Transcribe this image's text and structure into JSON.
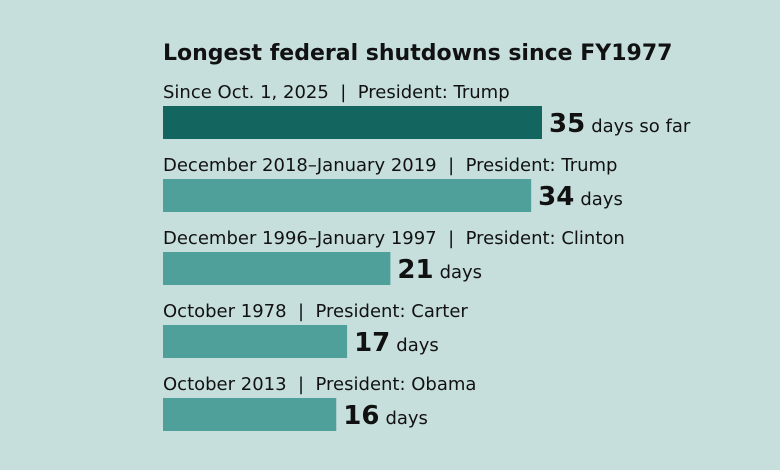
{
  "chart_data": {
    "type": "bar",
    "orientation": "horizontal",
    "title": "Longest federal shutdowns since FY1977",
    "xlabel": "",
    "ylabel": "",
    "xlim": [
      0,
      35
    ],
    "grid": false,
    "legend": "none",
    "categories": [
      "Since Oct. 1, 2025  |  President: Trump",
      "December 2018–January 2019  |  President: Trump",
      "December 1996–January 1997  |  President: Clinton",
      "October 1978  |  President: Carter",
      "October 2013  |  President: Obama"
    ],
    "values": [
      35,
      34,
      21,
      17,
      16
    ],
    "value_units": [
      "days so far",
      "days",
      "days",
      "days",
      "days"
    ],
    "colors": [
      "#136660",
      "#4f9f9b",
      "#4f9f9b",
      "#4f9f9b",
      "#4f9f9b"
    ],
    "background": "#c6dfdd"
  }
}
